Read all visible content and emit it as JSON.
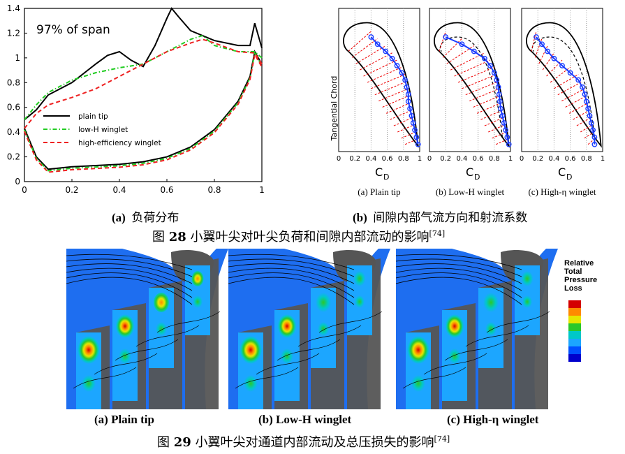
{
  "fig28": {
    "left_chart": {
      "annotation": "97% of span",
      "legend": [
        "plain tip",
        "low-H winglet",
        "high-efficiency winglet"
      ],
      "xticks": [
        "0",
        "0.2",
        "0.4",
        "0.6",
        "0.8",
        "1"
      ],
      "yticks": [
        "0",
        "0.2",
        "0.4",
        "0.6",
        "0.8",
        "1",
        "1.2",
        "1.4"
      ]
    },
    "right_panels": {
      "ylabel": "Tangential Chord",
      "xlabel": "C",
      "xlabel_sub": "D",
      "xticks": [
        "0",
        "0.2",
        "0.4",
        "0.6",
        "0.8",
        "1"
      ],
      "panel_titles": [
        "(a) Plain tip",
        "(b) Low-H winglet",
        "(c) High-η winglet"
      ]
    },
    "sub_a_label": "(a)",
    "sub_a_text": "负荷分布",
    "sub_b_label": "(b)",
    "sub_b_text": "间隙内部气流方向和射流系数",
    "caption_prefix": "图",
    "caption_num": "28",
    "caption_text": "小翼叶尖对叶尖负荷和间隙内部流动的影响",
    "caption_ref": "[74]"
  },
  "fig29": {
    "legend_title": [
      "Relative",
      "Total",
      "Pressure",
      "Loss"
    ],
    "legend_colors": [
      "#d40000",
      "#ff8a00",
      "#e6e600",
      "#2ac82a",
      "#00c8c8",
      "#1ca6ff",
      "#0050ff",
      "#0000cc"
    ],
    "subcaptions": [
      "(a) Plain tip",
      "(b) Low-H winglet",
      "(c) High-η winglet"
    ],
    "caption_prefix": "图",
    "caption_num": "29",
    "caption_text": "小翼叶尖对通道内部流动及总压损失的影响",
    "caption_ref": "[74]"
  },
  "chart_data": [
    {
      "type": "line",
      "title": "97% of span",
      "xlabel": "",
      "ylabel": "",
      "xlim": [
        0,
        1
      ],
      "ylim": [
        0,
        1.4
      ],
      "grid": false,
      "legend_position": "center-left",
      "series": [
        {
          "name": "plain tip",
          "color": "#000000",
          "style": "solid",
          "x": [
            0,
            0.05,
            0.1,
            0.2,
            0.3,
            0.35,
            0.4,
            0.45,
            0.5,
            0.55,
            0.6,
            0.62,
            0.65,
            0.7,
            0.8,
            0.9,
            0.95,
            0.97,
            1.0
          ],
          "y": [
            0.5,
            0.58,
            0.7,
            0.8,
            0.95,
            1.02,
            1.05,
            0.98,
            0.93,
            1.1,
            1.32,
            1.4,
            1.33,
            1.22,
            1.14,
            1.1,
            1.1,
            1.28,
            1.08
          ]
        },
        {
          "name": "low-H winglet",
          "color": "#22cc22",
          "style": "dash-dot",
          "x": [
            0,
            0.05,
            0.1,
            0.2,
            0.3,
            0.4,
            0.5,
            0.6,
            0.7,
            0.75,
            0.8,
            0.9,
            0.97,
            1.0
          ],
          "y": [
            0.5,
            0.62,
            0.72,
            0.82,
            0.88,
            0.92,
            0.95,
            1.05,
            1.15,
            1.18,
            1.1,
            1.05,
            1.05,
            1.0
          ]
        },
        {
          "name": "high-efficiency winglet",
          "color": "#ee2222",
          "style": "dashed",
          "x": [
            0,
            0.05,
            0.1,
            0.2,
            0.3,
            0.4,
            0.5,
            0.6,
            0.7,
            0.75,
            0.8,
            0.9,
            0.97,
            1.0
          ],
          "y": [
            0.43,
            0.55,
            0.62,
            0.68,
            0.75,
            0.85,
            0.95,
            1.05,
            1.12,
            1.15,
            1.12,
            1.05,
            1.04,
            0.95
          ]
        }
      ]
    },
    {
      "type": "scatter",
      "xlabel": "C_D",
      "ylabel": "Tangential Chord",
      "xlim": [
        0,
        1
      ],
      "panels": [
        {
          "title": "(a) Plain tip",
          "CD": [
            0.4,
            0.48,
            0.58,
            0.66,
            0.72,
            0.78,
            0.82,
            0.84,
            0.86,
            0.86,
            0.88,
            0.9,
            0.92,
            0.94,
            0.96,
            0.98
          ]
        },
        {
          "title": "(b) Low-H winglet",
          "CD": [
            0.2,
            0.4,
            0.55,
            0.68,
            0.75,
            0.8,
            0.83,
            0.85,
            0.86,
            0.87,
            0.88,
            0.9,
            0.92,
            0.94,
            0.96,
            0.98
          ]
        },
        {
          "title": "(c) High-η winglet",
          "CD": [
            0.18,
            0.25,
            0.32,
            0.4,
            0.5,
            0.6,
            0.7,
            0.75,
            0.78,
            0.8,
            0.82,
            0.84,
            0.86,
            0.88,
            0.9,
            0.9
          ]
        }
      ]
    }
  ]
}
